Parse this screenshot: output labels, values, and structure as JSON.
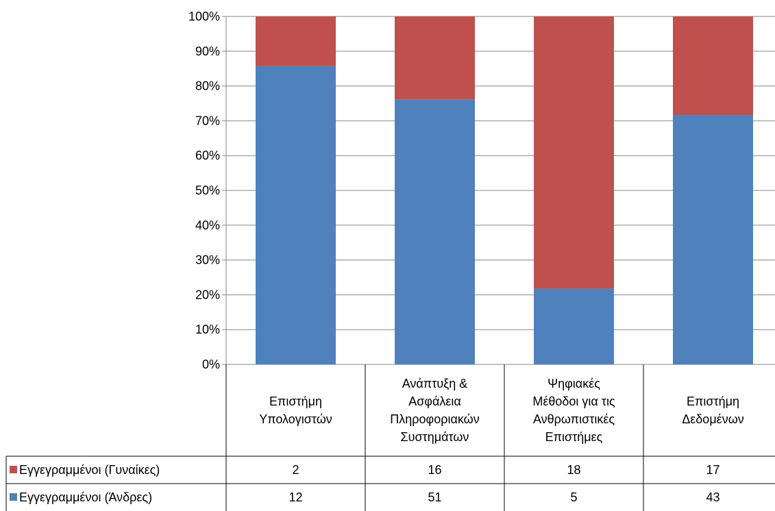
{
  "chart_data": {
    "type": "bar",
    "stacked": "percent",
    "categories": [
      [
        "Επιστήμη",
        "Υπολογιστών"
      ],
      [
        "Ανάπτυξη  &",
        "Ασφάλεια",
        "Πληροφοριακών",
        "Συστημάτων"
      ],
      [
        "Ψηφιακές",
        "Μέθοδοι για τις",
        "Ανθρωπιστικές",
        "Επιστήμες"
      ],
      [
        "Επιστήμη",
        "Δεδομένων"
      ]
    ],
    "series": [
      {
        "name": "Εγγεγραμμένοι (Άνδρες)",
        "values": [
          12,
          51,
          5,
          43
        ],
        "color": "#4F81BD"
      },
      {
        "name": "Εγγεγραμμένοι (Γυναίκες)",
        "values": [
          2,
          16,
          18,
          17
        ],
        "color": "#C0504D"
      }
    ],
    "table_row_order": [
      1,
      0
    ],
    "yticks": [
      "0%",
      "10%",
      "20%",
      "30%",
      "40%",
      "50%",
      "60%",
      "70%",
      "80%",
      "90%",
      "100%"
    ],
    "ylim": [
      0,
      100
    ],
    "grid": true,
    "data_table": true,
    "gridline_color": "#868686"
  }
}
